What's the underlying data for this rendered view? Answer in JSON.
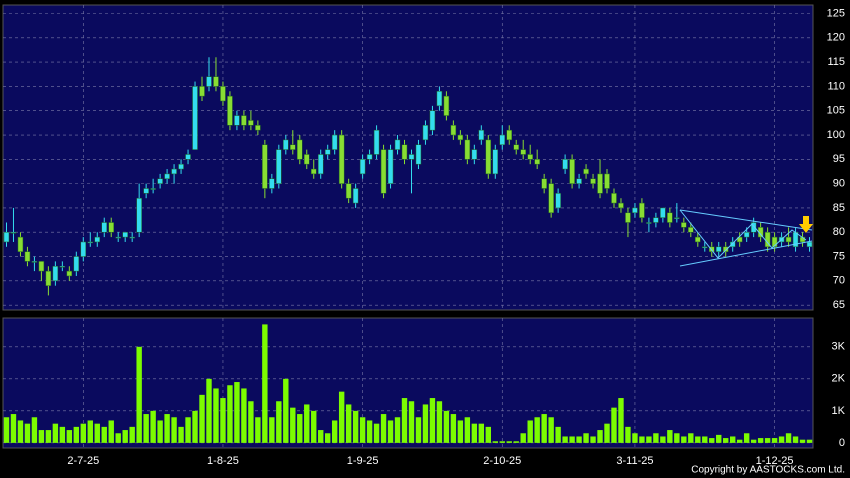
{
  "chart_data": [
    {
      "type": "candlestick",
      "up_color": "#33ddee",
      "down_color": "#88dd33",
      "grid": true,
      "ylim": [
        64,
        126.75
      ],
      "yticks": [
        65,
        70,
        75,
        80,
        85,
        90,
        95,
        100,
        105,
        110,
        115,
        120,
        125
      ],
      "open": [
        78,
        80,
        79,
        76,
        74,
        74,
        72,
        70,
        73,
        72,
        72,
        75,
        78,
        78,
        80,
        82,
        79,
        79,
        79,
        80,
        88,
        89,
        90,
        91,
        92,
        93,
        95,
        97,
        110,
        110,
        112,
        110,
        108,
        102,
        104,
        103,
        102,
        98,
        89,
        90,
        97,
        98,
        99,
        96,
        93,
        92,
        96,
        97,
        100,
        90,
        86,
        92,
        95,
        96,
        97,
        90,
        97,
        98,
        95,
        94,
        99,
        101,
        106,
        108,
        102,
        100,
        99,
        95,
        99,
        99,
        92,
        98,
        101,
        98,
        97,
        96,
        95,
        91,
        90,
        85,
        93,
        95,
        90,
        93,
        91,
        92,
        92,
        88,
        86,
        84,
        84,
        86,
        82,
        82,
        83,
        84,
        83,
        82,
        81,
        79,
        77,
        77,
        76,
        77,
        77,
        79,
        79,
        80,
        81,
        80,
        79,
        78,
        79,
        77,
        79,
        77
      ],
      "high": [
        82,
        85,
        80,
        77,
        75,
        74,
        73,
        74,
        74,
        73,
        76,
        79,
        80,
        80,
        83,
        83,
        80,
        80,
        80,
        90,
        90,
        91,
        92,
        93,
        94,
        95,
        97,
        111,
        112,
        116,
        116,
        111,
        109,
        105,
        105,
        105,
        103,
        99,
        92,
        98,
        100,
        101,
        100,
        97,
        95,
        97,
        98,
        101,
        101,
        91,
        90,
        96,
        97,
        102,
        98,
        98,
        100,
        99,
        97,
        99,
        103,
        106,
        110,
        109,
        103,
        101,
        100,
        98,
        102,
        100,
        98,
        102,
        102,
        99,
        99,
        98,
        97,
        92,
        91,
        89,
        96,
        96,
        92,
        94,
        92,
        95,
        93,
        89,
        87,
        85,
        86,
        87,
        83,
        84,
        85,
        85,
        86,
        83,
        82,
        80,
        78,
        78,
        78,
        78,
        79,
        80,
        81,
        83,
        82,
        81,
        80,
        80,
        81,
        81,
        80,
        79
      ],
      "low": [
        77,
        78,
        75,
        73,
        72,
        70,
        67,
        69,
        72,
        70,
        71,
        74,
        77,
        77,
        79,
        79,
        78,
        78,
        78,
        79,
        87,
        88,
        89,
        90,
        90,
        92,
        94,
        97,
        107,
        109,
        109,
        106,
        101,
        101,
        101,
        101,
        100,
        87,
        88,
        89,
        96,
        96,
        94,
        93,
        91,
        91,
        95,
        96,
        89,
        86,
        85,
        91,
        94,
        95,
        87,
        89,
        96,
        94,
        88,
        93,
        98,
        100,
        105,
        103,
        99,
        98,
        94,
        94,
        98,
        91,
        91,
        97,
        98,
        96,
        95,
        94,
        93,
        88,
        83,
        84,
        92,
        89,
        89,
        91,
        89,
        87,
        88,
        85,
        84,
        79,
        83,
        82,
        80,
        81,
        82,
        81,
        82,
        80,
        79,
        77,
        76,
        75,
        75,
        75,
        76,
        77,
        78,
        79,
        78,
        76,
        76,
        77,
        77,
        76,
        77,
        76
      ],
      "close": [
        80,
        80,
        76,
        74,
        74,
        72,
        69,
        73,
        73,
        71,
        75,
        78,
        78,
        79,
        82,
        80,
        79,
        80,
        79,
        87,
        89,
        89,
        91,
        92,
        93,
        94,
        96,
        110,
        108,
        112,
        110,
        107,
        102,
        104,
        102,
        102,
        101,
        89,
        91,
        97,
        99,
        97,
        95,
        94,
        92,
        96,
        97,
        100,
        90,
        87,
        89,
        95,
        96,
        101,
        88,
        97,
        99,
        95,
        96,
        98,
        102,
        105,
        109,
        104,
        100,
        99,
        95,
        97,
        101,
        92,
        97,
        100,
        99,
        97,
        96,
        95,
        94,
        89,
        84,
        88,
        95,
        90,
        91,
        92,
        90,
        88,
        89,
        86,
        85,
        82,
        85,
        83,
        82,
        83,
        85,
        82,
        83,
        81,
        80,
        78,
        77,
        76,
        77,
        76,
        78,
        78,
        80,
        82,
        79,
        77,
        77,
        79,
        78,
        80,
        78,
        78
      ]
    },
    {
      "type": "bar",
      "color": "#7cfc00",
      "grid": true,
      "ylim": [
        -160,
        3900
      ],
      "yticks": [
        0,
        {
          "value": 1000,
          "label": "1K"
        },
        {
          "value": 2000,
          "label": "2K"
        },
        {
          "value": 3000,
          "label": "3K"
        }
      ],
      "categories": [
        null,
        null,
        null,
        null,
        null,
        null,
        null,
        null,
        null,
        null,
        null,
        "2-7-25",
        null,
        null,
        null,
        null,
        null,
        null,
        null,
        null,
        null,
        null,
        null,
        null,
        null,
        null,
        null,
        null,
        null,
        null,
        null,
        "1-8-25",
        null,
        null,
        null,
        null,
        null,
        null,
        null,
        null,
        null,
        null,
        null,
        null,
        null,
        null,
        null,
        null,
        null,
        null,
        null,
        "1-9-25",
        null,
        null,
        null,
        null,
        null,
        null,
        null,
        null,
        null,
        null,
        null,
        null,
        null,
        null,
        null,
        null,
        null,
        null,
        null,
        "2-10-25",
        null,
        null,
        null,
        null,
        null,
        null,
        null,
        null,
        null,
        null,
        null,
        null,
        null,
        null,
        null,
        null,
        null,
        null,
        "3-11-25",
        null,
        null,
        null,
        null,
        null,
        null,
        null,
        null,
        null,
        null,
        null,
        null,
        null,
        null,
        null,
        null,
        null,
        null,
        null,
        "1-12-25",
        null,
        null,
        null,
        null,
        null
      ],
      "values": [
        800,
        900,
        700,
        600,
        800,
        400,
        400,
        600,
        500,
        400,
        500,
        600,
        700,
        600,
        500,
        700,
        300,
        400,
        500,
        3000,
        900,
        1000,
        700,
        900,
        800,
        500,
        800,
        1000,
        1500,
        2000,
        1700,
        1400,
        1800,
        1900,
        1700,
        1300,
        800,
        3700,
        800,
        1300,
        2000,
        1100,
        900,
        1200,
        1000,
        400,
        300,
        700,
        1600,
        1200,
        1000,
        800,
        700,
        600,
        900,
        700,
        800,
        1400,
        1300,
        800,
        1200,
        1400,
        1300,
        1000,
        900,
        700,
        800,
        600,
        600,
        500,
        50,
        50,
        50,
        50,
        300,
        700,
        800,
        900,
        800,
        500,
        200,
        200,
        200,
        300,
        200,
        400,
        600,
        1100,
        1400,
        500,
        300,
        200,
        200,
        300,
        200,
        400,
        300,
        200,
        300,
        200,
        200,
        150,
        250,
        150,
        200,
        100,
        300,
        100,
        150,
        150,
        150,
        200,
        300,
        200,
        100,
        100
      ]
    }
  ],
  "copyright": "Copyright by AASTOCKS.com Ltd."
}
